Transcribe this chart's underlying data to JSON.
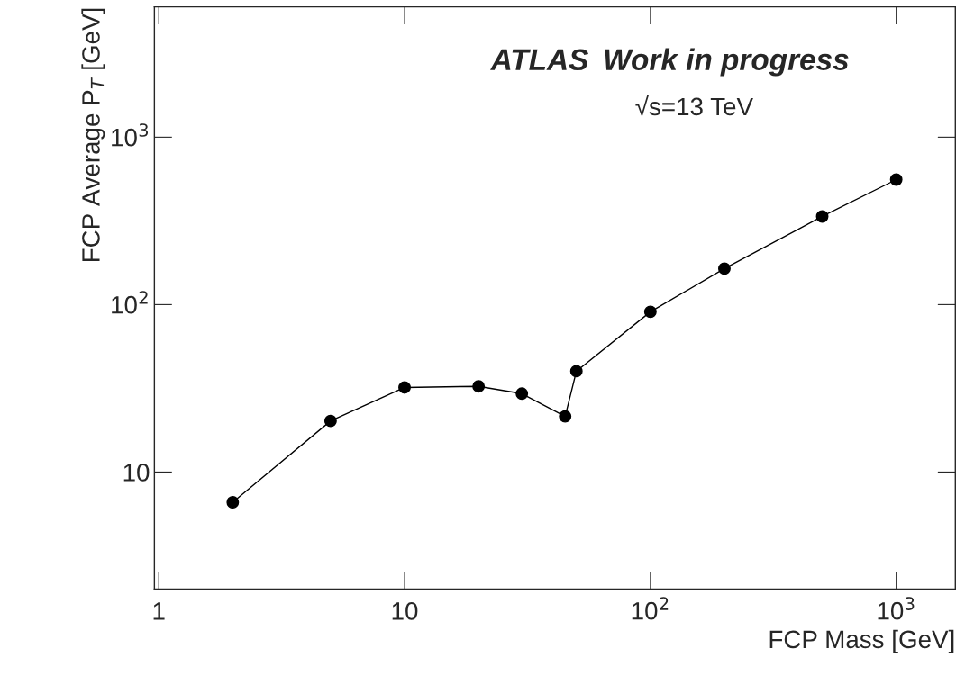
{
  "chart_data": {
    "type": "line",
    "xlabel": "FCP Mass [GeV]",
    "ylabel": "FCP Average P$_{T}$ [GeV]",
    "annotations": [
      "ATLAS",
      "Work in progress",
      "√s=13 TeV"
    ],
    "x": [
      2,
      5,
      10,
      20,
      30,
      45,
      50,
      100,
      200,
      500,
      1000
    ],
    "series": [
      {
        "color": "#000000",
        "values": [
          6.6,
          20.2,
          32,
          32.5,
          29.4,
          21.5,
          40,
          90.6,
          164,
          336,
          558
        ]
      }
    ],
    "log": "xy",
    "marker": "circle",
    "line_style": "solid",
    "grid": false,
    "xlim": [
      0.96,
      1740
    ],
    "ylim": [
      2,
      6000
    ],
    "xticks": [
      1,
      10,
      {
        "value": 100,
        "label": "10$^{2}$"
      },
      {
        "value": 1000,
        "label": "10$^{3}$"
      }
    ],
    "yticks": [
      10,
      {
        "value": 100,
        "label": "10$^{2}$"
      },
      {
        "value": 1000,
        "label": "10$^{3}$"
      }
    ]
  }
}
